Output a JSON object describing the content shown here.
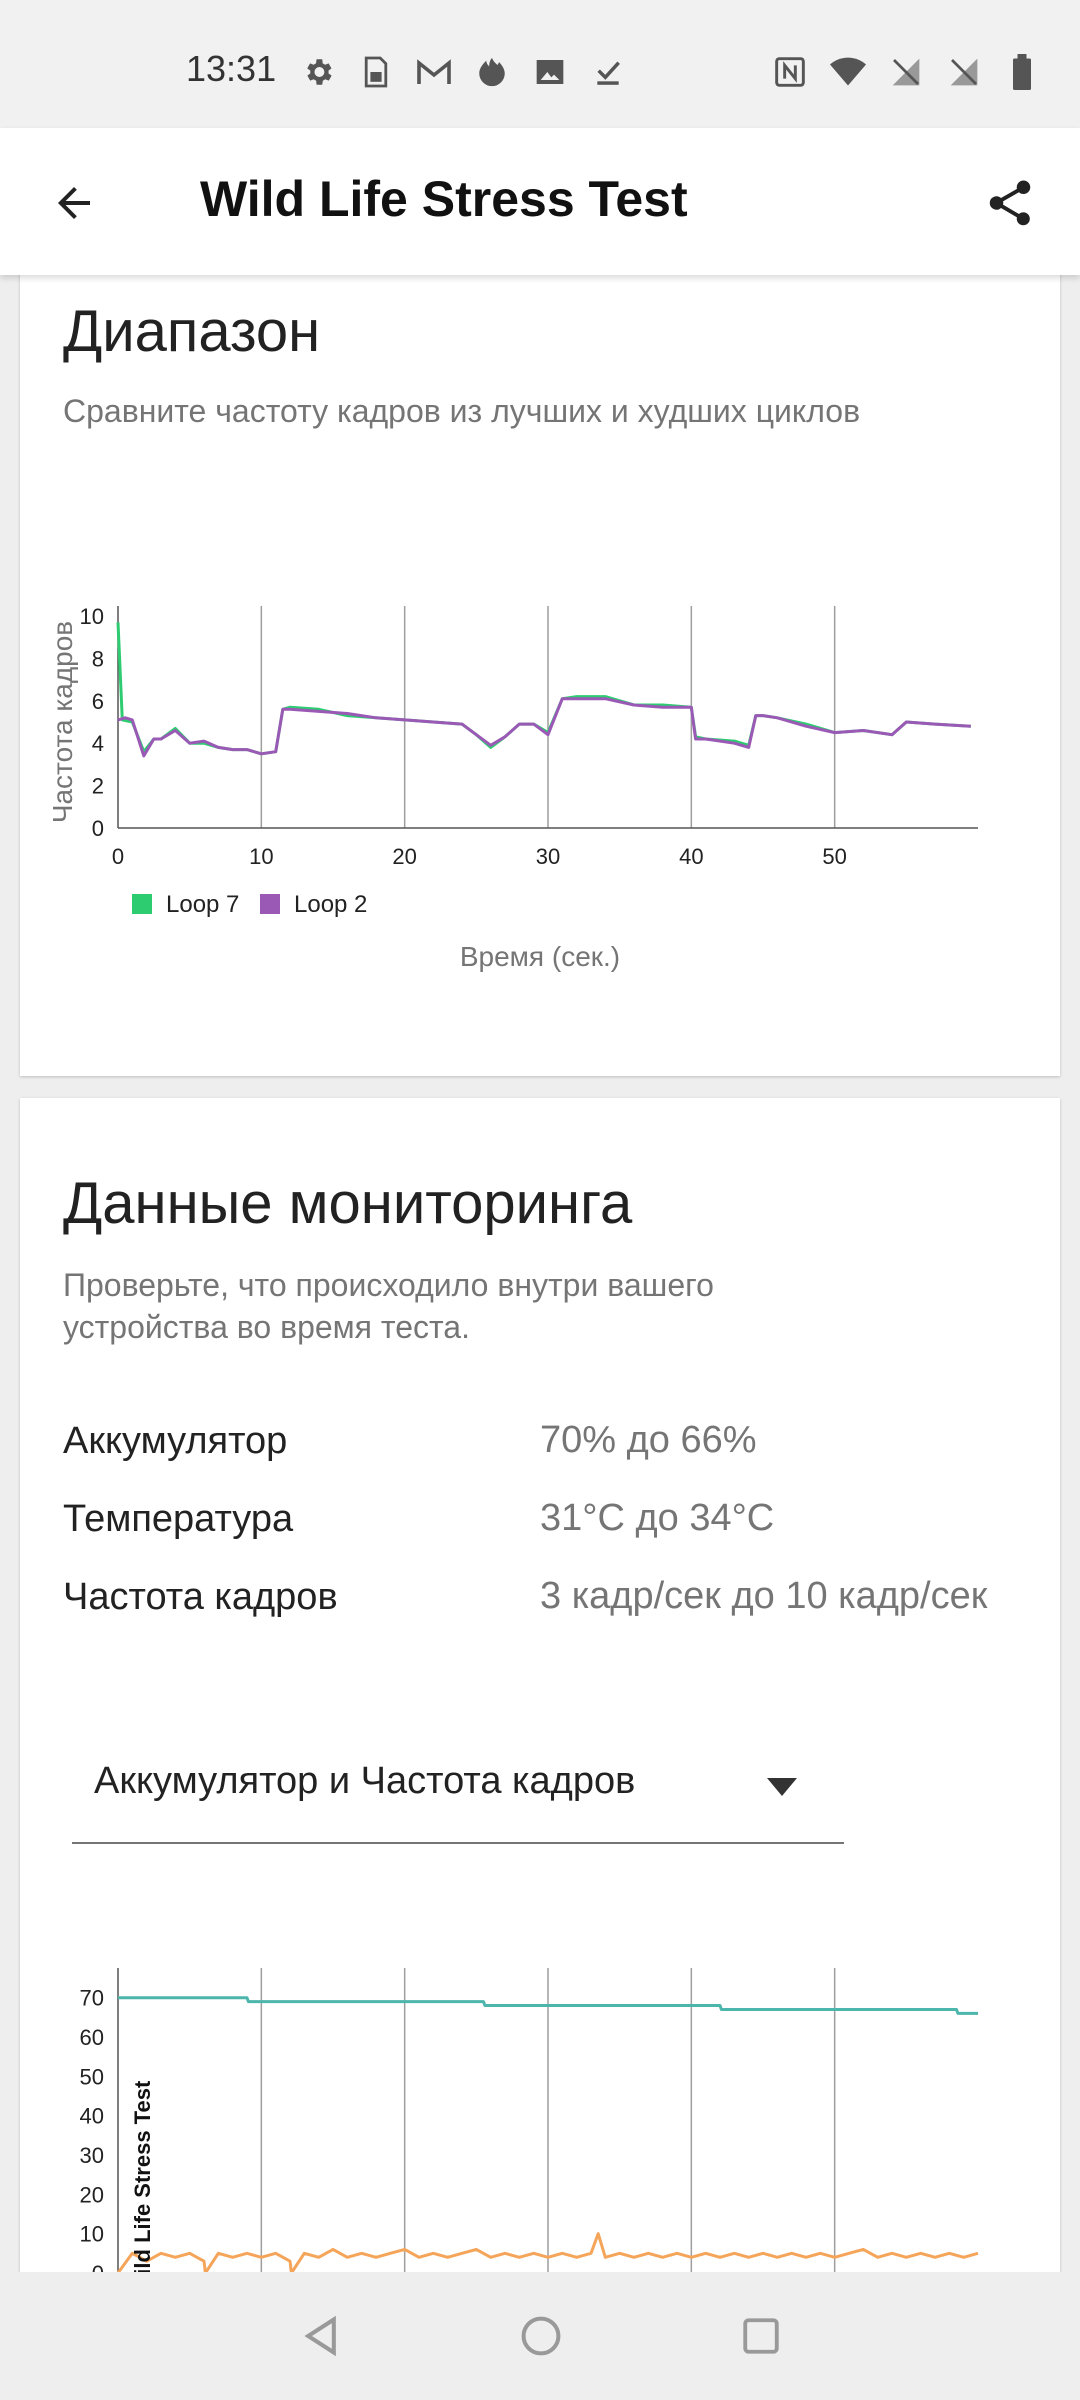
{
  "status_bar": {
    "time": "13:31",
    "left_icons": [
      "settings-icon",
      "sim-icon",
      "gmail-icon",
      "fire-icon",
      "image-icon",
      "download-done-icon"
    ],
    "right_icons": [
      "nfc-icon",
      "wifi-icon",
      "no-sim-icon",
      "no-sim-icon",
      "battery-icon"
    ]
  },
  "app_bar": {
    "title": "Wild Life Stress Test",
    "back_icon": "arrow-back-icon",
    "share_icon": "share-icon"
  },
  "range_card": {
    "title": "Диапазон",
    "subtitle": "Сравните частоту кадров из лучших и худших циклов"
  },
  "monitoring_card": {
    "title": "Данные мониторинга",
    "subtitle_line1": "Проверьте, что происходило внутри вашего",
    "subtitle_line2": "устройства во время теста.",
    "rows": [
      {
        "label": "Аккумулятор",
        "value": "70% до 66%"
      },
      {
        "label": "Температура",
        "value": "31°C до 34°C"
      },
      {
        "label": "Частота кадров",
        "value": "3 кадр/сек до 10 кадр/сек"
      }
    ],
    "dropdown": {
      "selected": "Аккумулятор и Частота кадров",
      "arrow_icon": "dropdown-arrow-icon"
    }
  },
  "chart_data": [
    {
      "type": "line",
      "ylabel": "Частота кадров",
      "xlabel": "Время (сек.)",
      "xlim": [
        0,
        60
      ],
      "ylim": [
        0,
        10
      ],
      "xticks": [
        0,
        10,
        20,
        30,
        40,
        50
      ],
      "yticks": [
        0,
        2,
        4,
        6,
        8,
        10
      ],
      "grid": "vertical",
      "legend": "bottom-left",
      "series": [
        {
          "name": "Loop 7",
          "color": "#2ecc71",
          "x": [
            0,
            0.3,
            1,
            1.8,
            2.5,
            3,
            4,
            5,
            6,
            7,
            8,
            9,
            10,
            11,
            11.5,
            12,
            14,
            16,
            18,
            20,
            22,
            24,
            25,
            26,
            27,
            28,
            29,
            30,
            31,
            32,
            34,
            36,
            38,
            40,
            40.3,
            41,
            43,
            44,
            44.5,
            45,
            46,
            48,
            50,
            52,
            54,
            55,
            57,
            59.5
          ],
          "y": [
            9.7,
            5.1,
            5.0,
            3.6,
            4.2,
            4.2,
            4.7,
            4.0,
            4.0,
            3.8,
            3.7,
            3.7,
            3.5,
            3.6,
            5.6,
            5.7,
            5.6,
            5.3,
            5.2,
            5.1,
            5.0,
            4.9,
            4.4,
            3.8,
            4.3,
            4.9,
            4.9,
            4.5,
            6.1,
            6.2,
            6.2,
            5.8,
            5.8,
            5.7,
            4.3,
            4.2,
            4.1,
            3.9,
            5.3,
            5.3,
            5.2,
            4.9,
            4.5,
            4.6,
            4.4,
            5.0,
            4.9,
            4.8
          ]
        },
        {
          "name": "Loop 2",
          "color": "#9b59b6",
          "x": [
            0,
            0.5,
            1,
            1.8,
            2.5,
            3,
            4,
            5,
            6,
            7,
            8,
            9,
            10,
            11,
            11.5,
            12,
            14,
            16,
            18,
            20,
            22,
            24,
            25,
            26,
            27,
            28,
            29,
            30,
            31,
            32,
            34,
            36,
            38,
            40,
            40.3,
            41,
            43,
            44,
            44.5,
            45,
            46,
            48,
            50,
            52,
            54,
            55,
            57,
            59.5
          ],
          "y": [
            5.1,
            5.2,
            5.1,
            3.4,
            4.2,
            4.2,
            4.6,
            4.0,
            4.1,
            3.8,
            3.7,
            3.7,
            3.5,
            3.6,
            5.6,
            5.6,
            5.5,
            5.4,
            5.2,
            5.1,
            5.0,
            4.9,
            4.4,
            3.9,
            4.3,
            4.9,
            4.9,
            4.4,
            6.1,
            6.1,
            6.1,
            5.8,
            5.7,
            5.7,
            4.2,
            4.2,
            4.0,
            3.8,
            5.3,
            5.3,
            5.2,
            4.8,
            4.5,
            4.6,
            4.4,
            5.0,
            4.9,
            4.8
          ]
        }
      ]
    },
    {
      "type": "line",
      "title": "Wild Life Stress Test",
      "xlim": [
        0,
        60
      ],
      "ylim": [
        0,
        75
      ],
      "yticks": [
        0,
        10,
        20,
        30,
        40,
        50,
        60,
        70
      ],
      "grid": "vertical",
      "series": [
        {
          "color": "#4db6ac",
          "x": [
            0,
            9,
            9.1,
            25.5,
            25.6,
            42,
            42.1,
            58.5,
            58.6,
            60
          ],
          "y": [
            70,
            70,
            69,
            69,
            68,
            68,
            67,
            67,
            66,
            66
          ]
        },
        {
          "color": "#f5a55a",
          "x": [
            0,
            1,
            2,
            3,
            4,
            5,
            6,
            6.1,
            7,
            8,
            9,
            10,
            11,
            12,
            12.1,
            13,
            14,
            15,
            16,
            17,
            18,
            19,
            20,
            21,
            22,
            23,
            24,
            25,
            26,
            27,
            28,
            29,
            30,
            31,
            32,
            33,
            33.5,
            34,
            35,
            36,
            37,
            38,
            39,
            40,
            41,
            42,
            43,
            44,
            45,
            46,
            47,
            48,
            49,
            50,
            51,
            52,
            53,
            54,
            55,
            56,
            57,
            58,
            59,
            60
          ],
          "y": [
            0,
            5,
            3,
            5,
            4,
            5,
            3,
            0,
            5,
            4,
            5,
            4,
            5,
            3,
            0,
            5,
            4,
            6,
            4,
            5,
            4,
            5,
            6,
            4,
            5,
            4,
            5,
            6,
            4,
            5,
            4,
            5,
            4,
            5,
            4,
            5,
            10,
            4,
            5,
            4,
            5,
            4,
            5,
            4,
            5,
            4,
            5,
            4,
            5,
            4,
            5,
            4,
            5,
            4,
            5,
            6,
            4,
            5,
            4,
            5,
            4,
            5,
            4,
            5
          ]
        }
      ]
    }
  ]
}
